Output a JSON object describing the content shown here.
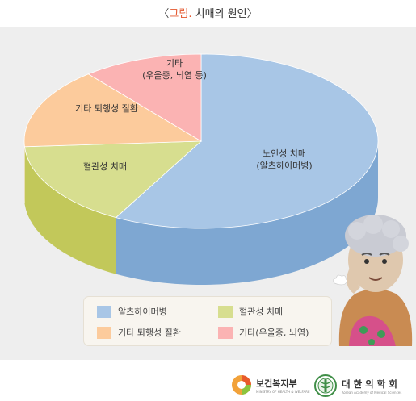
{
  "title": {
    "open": "〈",
    "highlight": "그림.",
    "rest": " 치매의 원인",
    "close": "〉"
  },
  "chart_data": {
    "type": "pie",
    "title": "그림. 치매의 원인",
    "slices": [
      {
        "label_lines": [
          "노인성 치매",
          "(알츠하이머병)"
        ],
        "value": 58,
        "color": "#a8c6e6",
        "side": "#7ea7d2"
      },
      {
        "label_lines": [
          "혈관성 치매"
        ],
        "value": 16,
        "color": "#d7de8f",
        "side": "#c2c85a"
      },
      {
        "label_lines": [
          "기타 퇴행성 질환"
        ],
        "value": 15,
        "color": "#fccb9c",
        "side": "#e8b184"
      },
      {
        "label_lines": [
          "기타",
          "(우울증, 뇌염 등)"
        ],
        "value": 11,
        "color": "#fbb3b3",
        "side": "#e39a9a"
      }
    ],
    "legend": [
      {
        "label": "알츠하이머병",
        "color": "#a8c6e6"
      },
      {
        "label": "혈관성 치매",
        "color": "#d7de8f"
      },
      {
        "label": "기타 퇴행성 질환",
        "color": "#fccb9c"
      },
      {
        "label": "기타(우울증, 뇌염)",
        "color": "#fbb3b3"
      }
    ],
    "legend_position": "bottom"
  },
  "footer": {
    "ministry": "보건복지부",
    "ministry_en": "MINISTRY OF HEALTH & WELFARE",
    "academy": "대 한 의 학 회",
    "academy_en": "Korean Academy of Medical Sciences"
  }
}
